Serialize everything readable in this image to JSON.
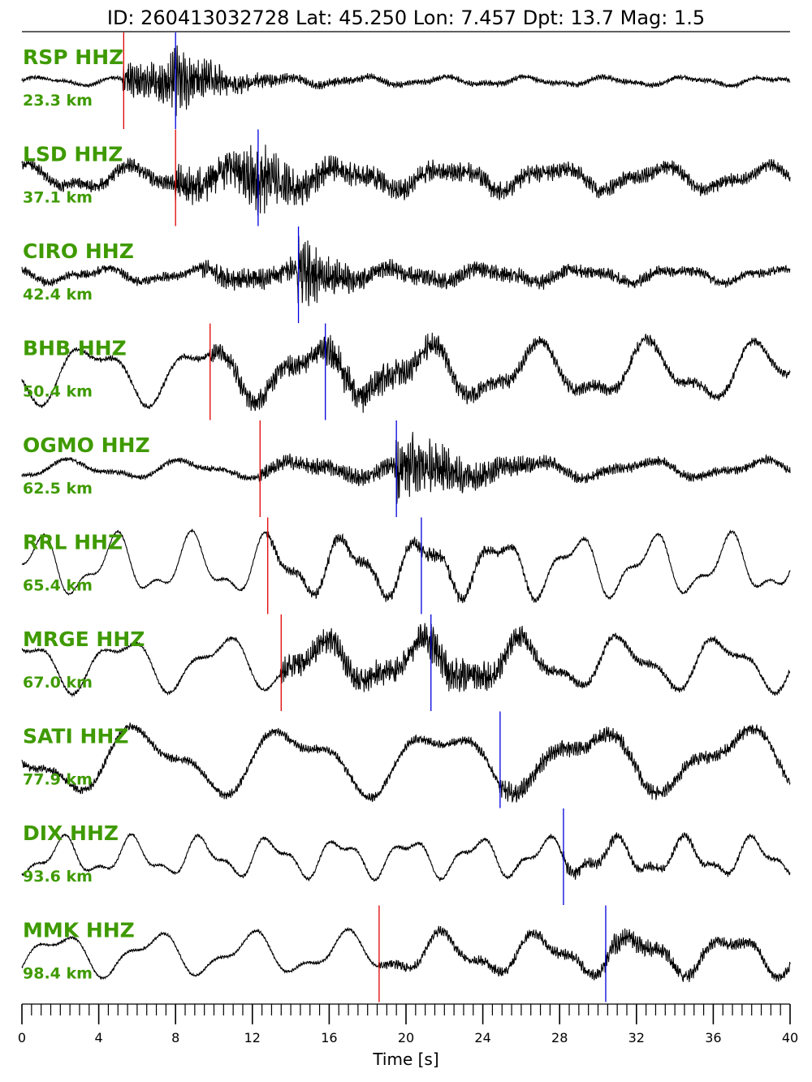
{
  "title": "ID: 260413032728 Lat:  45.250 Lon:   7.457 Dpt:    13.7 Mag:   1.5",
  "colors": {
    "trace": "#000000",
    "label": "#3f9a00",
    "p_pick": "#e00000",
    "s_pick": "#0000e0"
  },
  "chart_data": {
    "type": "line",
    "subtype": "seismogram-record-section",
    "xlabel": "Time [s]",
    "xlim": [
      0,
      40
    ],
    "major_ticks": [
      0,
      4,
      8,
      12,
      16,
      20,
      24,
      28,
      32,
      36,
      40
    ],
    "minor_tick_step": 0.5,
    "legend": "none",
    "grid": false,
    "series": [
      {
        "name": "RSP HHZ",
        "distance": "23.3 km",
        "p_pick": 5.3,
        "s_pick": 8.0,
        "envelope": [
          [
            0,
            0.05
          ],
          [
            5.2,
            0.05
          ],
          [
            5.3,
            0.4
          ],
          [
            7.6,
            0.6
          ],
          [
            8.0,
            1.0
          ],
          [
            9.0,
            0.6
          ],
          [
            11,
            0.3
          ],
          [
            14,
            0.12
          ],
          [
            20,
            0.08
          ],
          [
            40,
            0.06
          ]
        ],
        "noise": 0.55,
        "swell": 0.12,
        "period": 4.2
      },
      {
        "name": "LSD HHZ",
        "distance": "37.1 km",
        "p_pick": 8.0,
        "s_pick": 12.3,
        "envelope": [
          [
            0,
            0.15
          ],
          [
            7.9,
            0.2
          ],
          [
            8.0,
            0.45
          ],
          [
            11,
            0.5
          ],
          [
            12.3,
            1.0
          ],
          [
            13.5,
            0.55
          ],
          [
            17,
            0.3
          ],
          [
            40,
            0.15
          ]
        ],
        "noise": 0.4,
        "swell": 0.35,
        "period": 5.5
      },
      {
        "name": "CIRO HHZ",
        "distance": "42.4 km",
        "p_pick": null,
        "s_pick": 14.4,
        "envelope": [
          [
            0,
            0.12
          ],
          [
            9.2,
            0.12
          ],
          [
            9.3,
            0.25
          ],
          [
            14.3,
            0.3
          ],
          [
            14.4,
            1.0
          ],
          [
            15.6,
            0.6
          ],
          [
            18,
            0.25
          ],
          [
            40,
            0.1
          ]
        ],
        "noise": 0.5,
        "swell": 0.2,
        "period": 5.0
      },
      {
        "name": "BHB HHZ",
        "distance": "50.4 km",
        "p_pick": 9.8,
        "s_pick": 15.8,
        "envelope": [
          [
            0,
            0.05
          ],
          [
            9.7,
            0.08
          ],
          [
            9.8,
            0.25
          ],
          [
            15.7,
            0.3
          ],
          [
            15.8,
            0.5
          ],
          [
            19,
            0.4
          ],
          [
            24,
            0.2
          ],
          [
            40,
            0.1
          ]
        ],
        "noise": 0.35,
        "swell": 0.85,
        "period": 5.8
      },
      {
        "name": "OGMO HHZ",
        "distance": "62.5 km",
        "p_pick": 12.4,
        "s_pick": 19.5,
        "envelope": [
          [
            0,
            0.05
          ],
          [
            12.3,
            0.08
          ],
          [
            12.4,
            0.2
          ],
          [
            19.4,
            0.25
          ],
          [
            19.5,
            1.0
          ],
          [
            21,
            0.7
          ],
          [
            24,
            0.35
          ],
          [
            28,
            0.15
          ],
          [
            40,
            0.1
          ]
        ],
        "noise": 0.5,
        "swell": 0.25,
        "period": 6.0
      },
      {
        "name": "RRL HHZ",
        "distance": "65.4 km",
        "p_pick": 12.8,
        "s_pick": 20.8,
        "envelope": [
          [
            0,
            0.02
          ],
          [
            12.7,
            0.03
          ],
          [
            12.8,
            0.12
          ],
          [
            20.7,
            0.15
          ],
          [
            20.8,
            0.2
          ],
          [
            24,
            0.15
          ],
          [
            28,
            0.05
          ],
          [
            40,
            0.03
          ]
        ],
        "noise": 0.3,
        "swell": 0.85,
        "period": 4.0
      },
      {
        "name": "MRGE HHZ",
        "distance": "67.0 km",
        "p_pick": 13.5,
        "s_pick": 21.3,
        "envelope": [
          [
            0,
            0.04
          ],
          [
            13.4,
            0.05
          ],
          [
            13.5,
            0.35
          ],
          [
            21.2,
            0.35
          ],
          [
            21.3,
            0.55
          ],
          [
            25,
            0.35
          ],
          [
            28,
            0.12
          ],
          [
            40,
            0.06
          ]
        ],
        "noise": 0.4,
        "swell": 0.75,
        "period": 5.2
      },
      {
        "name": "SATI HHZ",
        "distance": "77.9 km",
        "p_pick": null,
        "s_pick": 24.9,
        "envelope": [
          [
            0,
            0.1
          ],
          [
            24.8,
            0.12
          ],
          [
            24.9,
            0.3
          ],
          [
            28,
            0.22
          ],
          [
            40,
            0.15
          ]
        ],
        "noise": 0.35,
        "swell": 0.95,
        "period": 7.8
      },
      {
        "name": "DIX HHZ",
        "distance": "93.6 km",
        "p_pick": null,
        "s_pick": 28.2,
        "envelope": [
          [
            0,
            0.03
          ],
          [
            28.1,
            0.05
          ],
          [
            28.2,
            0.2
          ],
          [
            31,
            0.12
          ],
          [
            40,
            0.05
          ]
        ],
        "noise": 0.3,
        "swell": 0.55,
        "period": 3.6
      },
      {
        "name": "MMK HHZ",
        "distance": "98.4 km",
        "p_pick": 18.6,
        "s_pick": 30.4,
        "envelope": [
          [
            0,
            0.03
          ],
          [
            18.5,
            0.04
          ],
          [
            18.6,
            0.12
          ],
          [
            30.3,
            0.15
          ],
          [
            30.4,
            0.35
          ],
          [
            33,
            0.2
          ],
          [
            40,
            0.12
          ]
        ],
        "noise": 0.35,
        "swell": 0.6,
        "period": 5.0
      }
    ]
  }
}
